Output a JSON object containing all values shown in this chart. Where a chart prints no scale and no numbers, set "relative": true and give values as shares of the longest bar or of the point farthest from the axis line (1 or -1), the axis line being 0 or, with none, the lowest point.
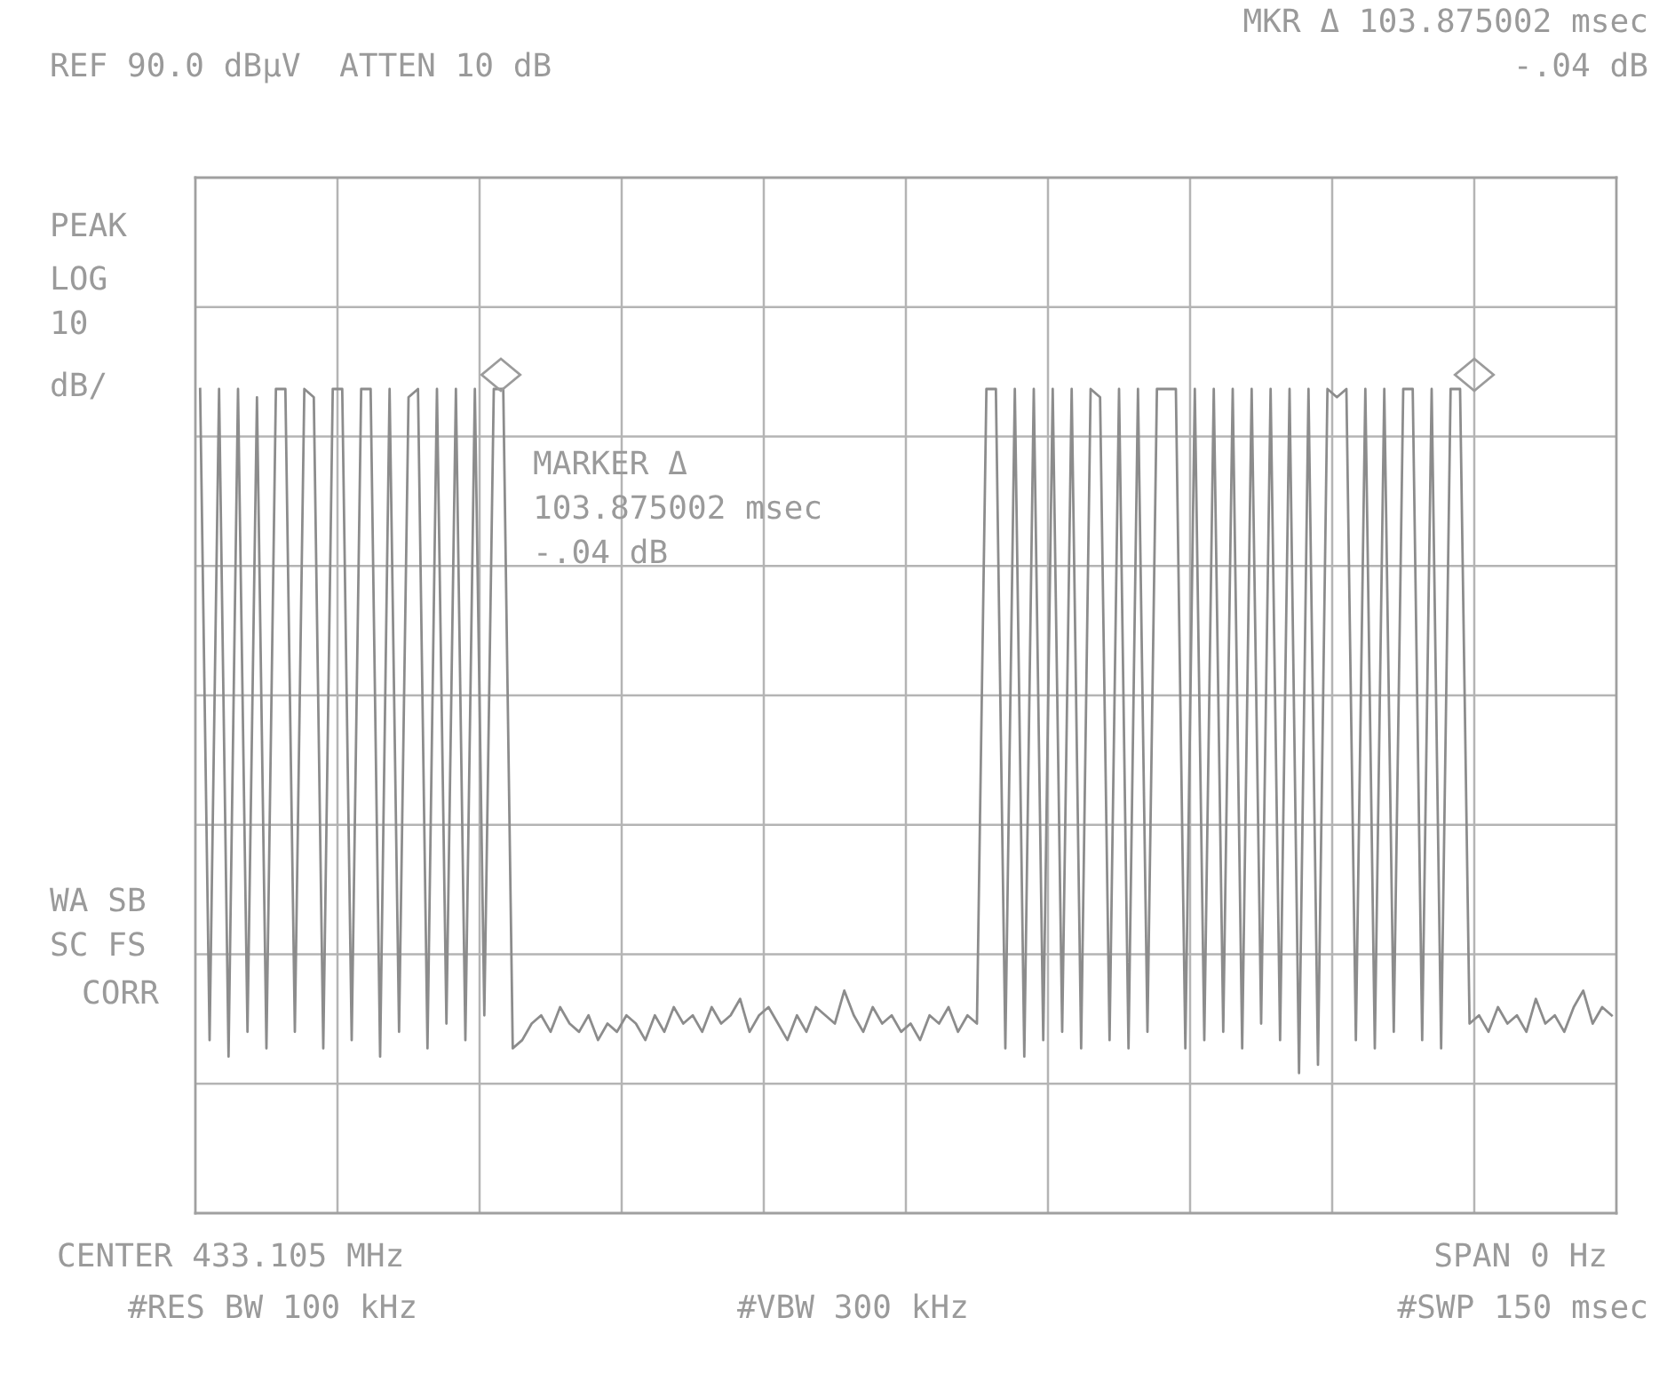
{
  "chart_data": {
    "type": "line",
    "relative": true,
    "grid": true,
    "line_style": "solid",
    "categories": [
      null,
      null,
      null,
      null,
      null,
      null,
      null,
      null,
      null,
      null,
      null,
      null,
      null,
      null,
      null,
      null,
      null,
      null,
      null,
      null,
      null,
      null,
      null,
      null,
      null,
      null,
      null,
      null,
      null,
      null,
      null,
      null,
      null,
      null,
      null,
      null,
      null,
      null,
      null,
      null,
      null,
      null,
      null,
      null,
      null,
      null,
      null,
      null,
      null,
      null,
      null,
      null,
      null,
      null,
      null,
      null,
      null,
      null,
      null,
      null,
      null,
      null,
      null,
      null,
      null,
      null,
      null,
      null,
      null,
      null,
      null,
      null,
      null,
      null,
      null,
      null,
      null,
      null,
      null,
      null,
      null,
      null,
      null,
      null,
      null,
      null,
      null,
      null,
      null,
      null,
      null,
      null,
      null,
      null,
      null,
      null,
      null,
      null,
      null,
      null,
      null,
      null,
      null,
      null,
      null,
      null,
      null,
      null,
      null,
      null,
      null,
      null,
      null,
      null,
      null,
      null,
      null,
      null,
      null,
      null,
      null,
      null,
      null,
      null,
      null,
      null,
      null,
      null,
      null,
      null,
      null,
      null,
      null,
      null,
      null,
      null,
      null,
      null,
      null,
      null,
      null,
      null,
      null,
      null,
      null,
      null,
      null,
      null,
      null,
      null
    ],
    "series": [
      {
        "color": "#8c8c8c",
        "values": [
          1,
          0.21,
          1,
          0.19,
          1,
          0.22,
          0.99,
          0.2,
          1,
          1,
          0.22,
          1,
          0.99,
          0.2,
          1,
          1,
          0.21,
          1,
          1,
          0.19,
          1,
          0.22,
          0.99,
          1,
          0.2,
          1,
          0.23,
          1,
          0.21,
          1,
          0.24,
          1,
          1,
          0.2,
          0.21,
          0.23,
          0.24,
          0.22,
          0.25,
          0.23,
          0.22,
          0.24,
          0.21,
          0.23,
          0.22,
          0.24,
          0.23,
          0.21,
          0.24,
          0.22,
          0.25,
          0.23,
          0.24,
          0.22,
          0.25,
          0.23,
          0.24,
          0.26,
          0.22,
          0.24,
          0.25,
          0.23,
          0.21,
          0.24,
          0.22,
          0.25,
          0.24,
          0.23,
          0.27,
          0.24,
          0.22,
          0.25,
          0.23,
          0.24,
          0.22,
          0.23,
          0.21,
          0.24,
          0.23,
          0.25,
          0.22,
          0.24,
          0.23,
          1,
          1,
          0.2,
          1,
          0.19,
          1,
          0.21,
          1,
          0.22,
          1,
          0.2,
          1,
          0.99,
          0.21,
          1,
          0.2,
          1,
          0.22,
          1,
          1,
          1,
          0.2,
          1,
          0.21,
          1,
          0.22,
          1,
          0.2,
          1,
          0.23,
          1,
          0.21,
          1,
          0.17,
          1,
          0.18,
          1,
          0.99,
          1,
          0.21,
          1,
          0.2,
          1,
          0.22,
          1,
          1,
          0.21,
          1,
          0.2,
          1,
          1,
          0.23,
          0.24,
          0.22,
          0.25,
          0.23,
          0.24,
          0.22,
          0.26,
          0.23,
          0.24,
          0.22,
          0.25,
          0.27,
          0.23,
          0.25,
          0.24
        ]
      }
    ],
    "annotations": [
      "REF 90.0 dBµV  ATTEN 10 dB",
      "MKR Δ 103.875002 msec",
      "-.04 dB",
      "PEAK",
      "LOG",
      "10",
      "dB/",
      "MARKER Δ",
      "103.875002 msec",
      "-.04 dB",
      "WA SB",
      "SC FS",
      "CORR",
      "CENTER 433.105 MHz",
      "SPAN 0 Hz",
      "#RES BW 100 kHz",
      "#VBW 300 kHz",
      "#SWP 150 msec"
    ]
  }
}
